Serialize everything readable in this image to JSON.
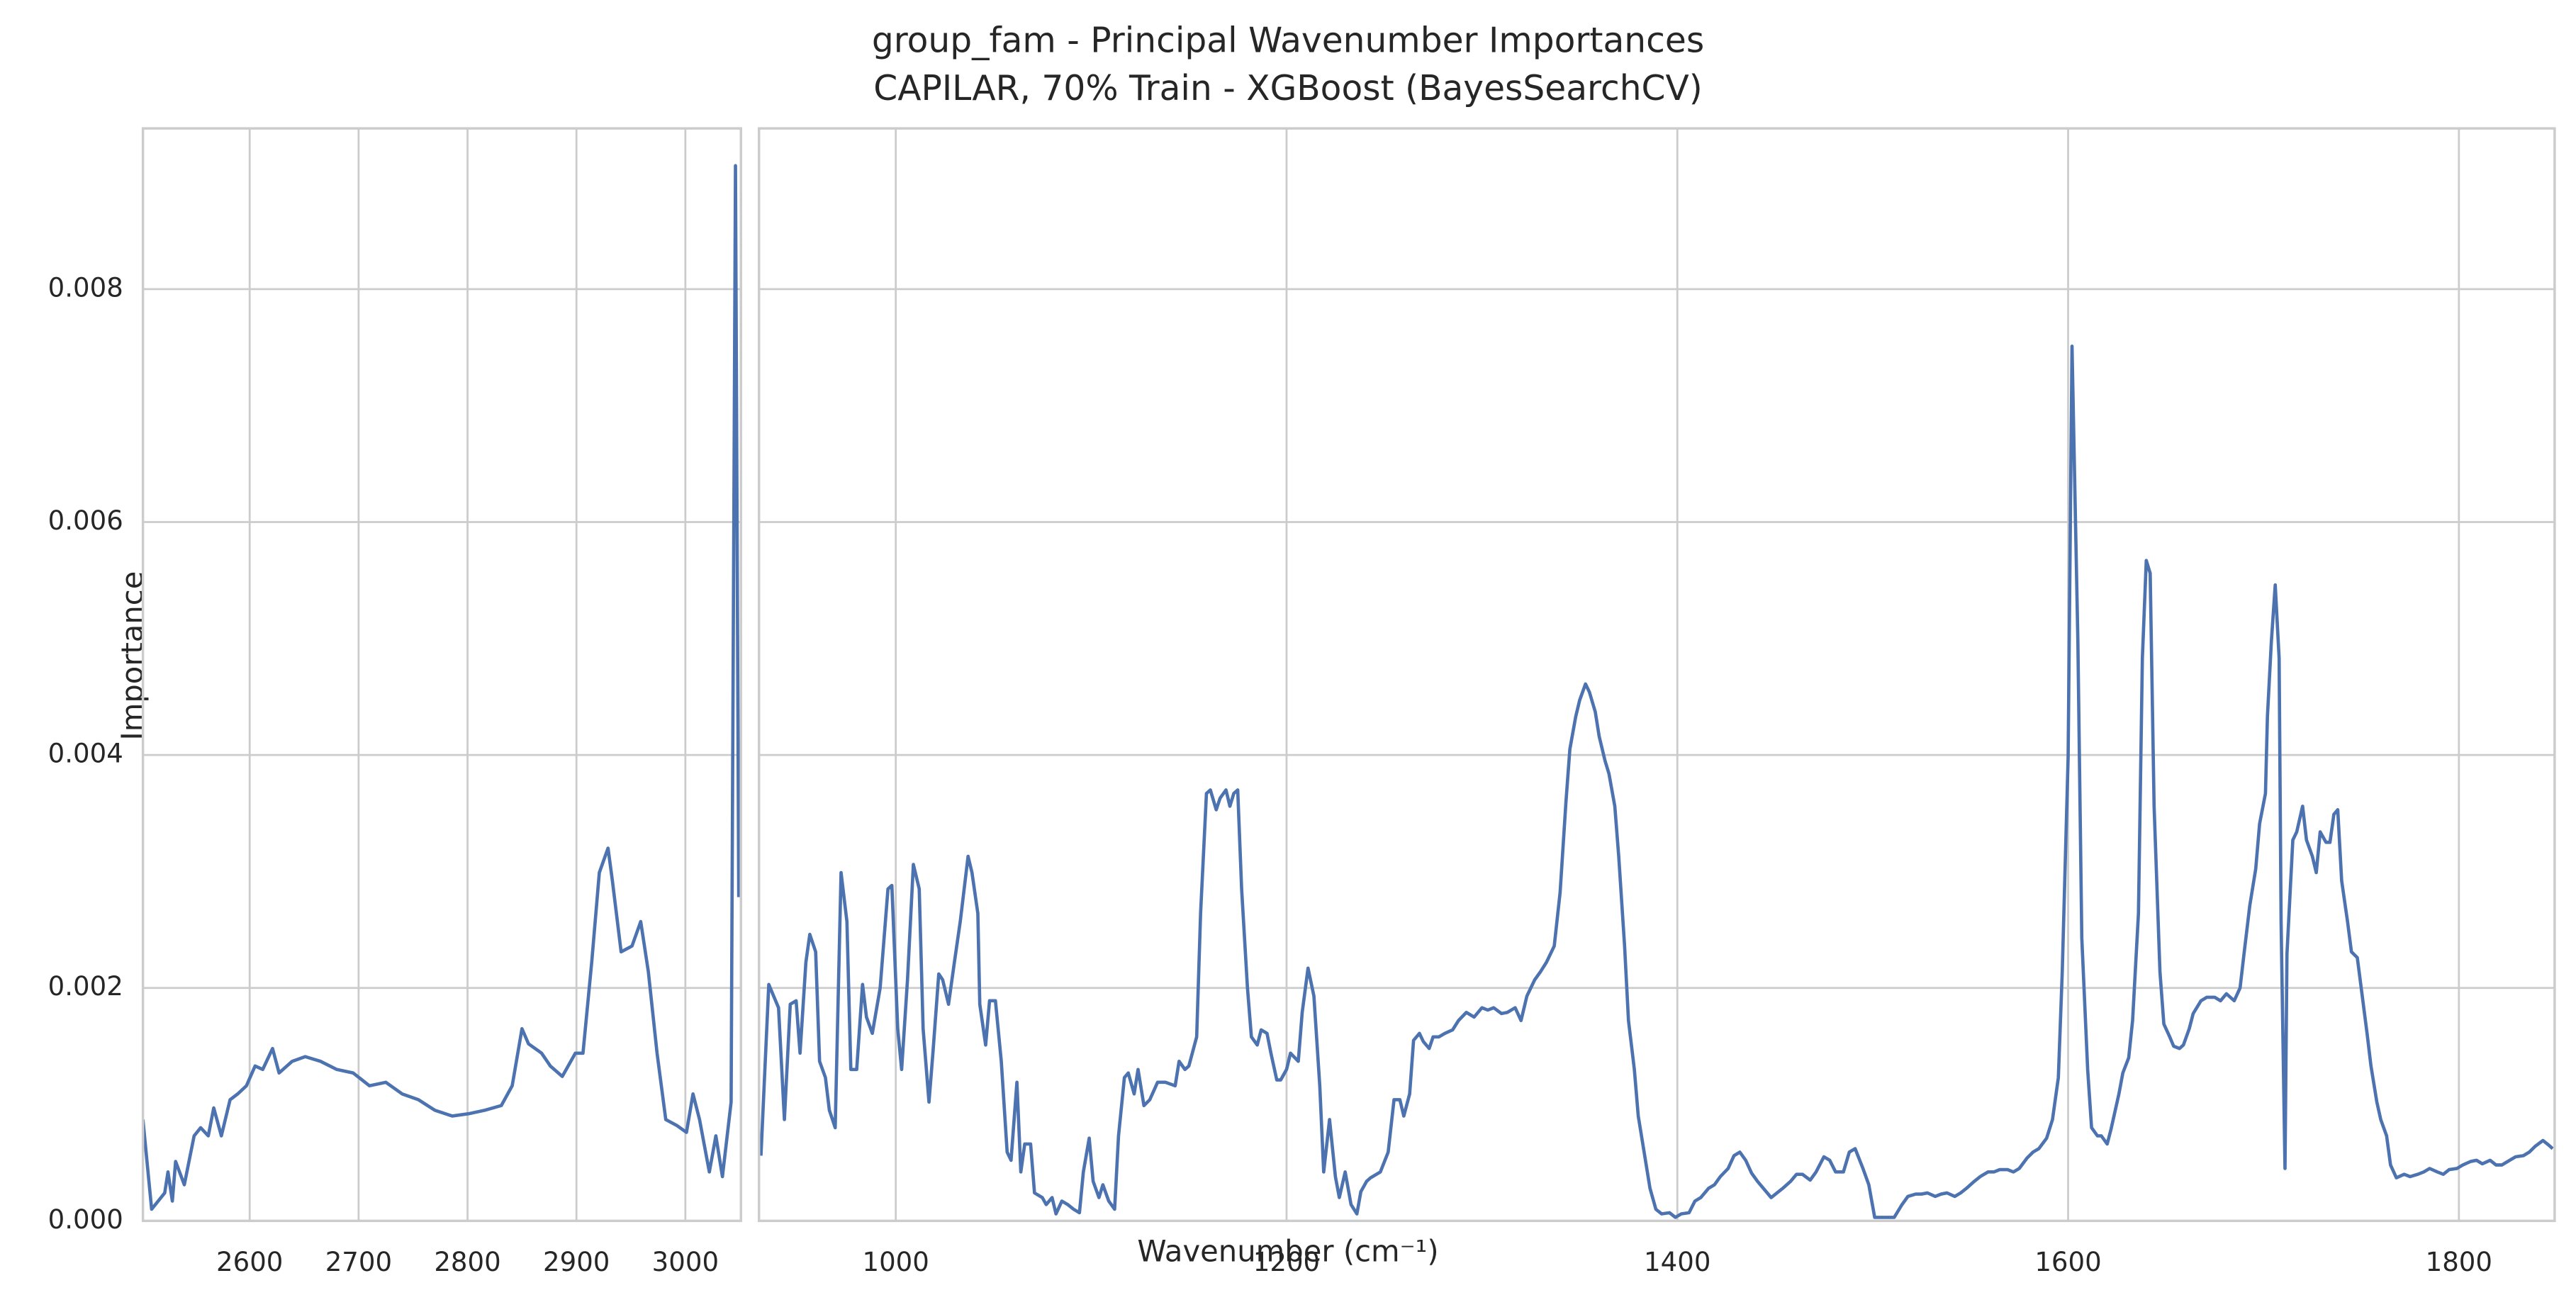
{
  "chart_data": {
    "type": "line",
    "title": "group_fam - Principal Wavenumber Importances",
    "subtitle": "CAPILAR, 70% Train - XGBoost (BayesSearchCV)",
    "x_label": "Wavenumber (cm⁻¹)",
    "y_label": "Importance",
    "color": "#4c72b0",
    "grid": true,
    "ylim": [
      0,
      0.00938
    ],
    "yticks": [
      {
        "value": 0,
        "label": "0.000"
      },
      0.002,
      0.004,
      0.006,
      0.008
    ],
    "panels": [
      {
        "xlim": [
          2502,
          3051
        ],
        "xticks": [
          2600,
          2700,
          2800,
          2900,
          3000
        ],
        "x": [
          2502,
          2510,
          2522,
          2525,
          2529,
          2532,
          2540,
          2549,
          2555,
          2562,
          2567,
          2574,
          2582,
          2589,
          2597,
          2605,
          2612,
          2621,
          2627,
          2639,
          2651,
          2665,
          2680,
          2695,
          2710,
          2725,
          2740,
          2755,
          2770,
          2786,
          2801,
          2816,
          2831,
          2841,
          2850,
          2856,
          2868,
          2876,
          2887,
          2899,
          2906,
          2914,
          2921,
          2929,
          2933,
          2941,
          2951,
          2959,
          2966,
          2974,
          2982,
          2992,
          3001,
          3007,
          3013,
          3022,
          3028,
          3034,
          3042,
          3046,
          3049
        ],
        "values": [
          0.00087,
          0.0001,
          0.00024,
          0.00042,
          0.00017,
          0.00051,
          0.00031,
          0.00073,
          0.0008,
          0.00073,
          0.00097,
          0.00073,
          0.00104,
          0.00109,
          0.00116,
          0.00133,
          0.0013,
          0.00148,
          0.00127,
          0.00137,
          0.00141,
          0.00137,
          0.0013,
          0.00127,
          0.00116,
          0.00119,
          0.00109,
          0.00104,
          0.00095,
          0.0009,
          0.00092,
          0.00095,
          0.00099,
          0.00116,
          0.00165,
          0.00152,
          0.00144,
          0.00133,
          0.00124,
          0.00144,
          0.00144,
          0.00222,
          0.00299,
          0.0032,
          0.00292,
          0.00231,
          0.00236,
          0.00257,
          0.00214,
          0.00144,
          0.00087,
          0.00082,
          0.00076,
          0.00109,
          0.00087,
          0.00042,
          0.00073,
          0.00038,
          0.00102,
          0.00906,
          0.00278
        ]
      },
      {
        "xlim": [
          930,
          1849
        ],
        "xticks": [
          1000,
          1200,
          1400,
          1600,
          1800
        ],
        "x": [
          931,
          935,
          940,
          943,
          946,
          949,
          951,
          954,
          956,
          959,
          961,
          964,
          966,
          969,
          972,
          975,
          977,
          980,
          983,
          985,
          988,
          992,
          996,
          998,
          1001,
          1003,
          1006,
          1009,
          1012,
          1014,
          1017,
          1019,
          1022,
          1024,
          1027,
          1030,
          1033,
          1037,
          1039,
          1042,
          1043,
          1046,
          1048,
          1051,
          1054,
          1057,
          1059,
          1062,
          1064,
          1066,
          1069,
          1071,
          1075,
          1077,
          1080,
          1082,
          1085,
          1088,
          1091,
          1094,
          1096,
          1099,
          1101,
          1104,
          1106,
          1109,
          1112,
          1114,
          1117,
          1119,
          1122,
          1124,
          1127,
          1130,
          1134,
          1138,
          1143,
          1145,
          1148,
          1150,
          1154,
          1156,
          1159,
          1161,
          1164,
          1166,
          1169,
          1171,
          1173,
          1175,
          1177,
          1180,
          1182,
          1185,
          1187,
          1190,
          1192,
          1195,
          1197,
          1200,
          1202,
          1206,
          1208,
          1211,
          1214,
          1217,
          1219,
          1222,
          1225,
          1227,
          1230,
          1233,
          1236,
          1238,
          1241,
          1243,
          1248,
          1252,
          1255,
          1258,
          1260,
          1263,
          1265,
          1268,
          1270,
          1273,
          1275,
          1278,
          1281,
          1285,
          1288,
          1292,
          1296,
          1300,
          1303,
          1306,
          1310,
          1313,
          1317,
          1320,
          1323,
          1327,
          1330,
          1333,
          1337,
          1340,
          1343,
          1345,
          1348,
          1350,
          1353,
          1355,
          1358,
          1360,
          1363,
          1365,
          1368,
          1370,
          1373,
          1375,
          1378,
          1380,
          1383,
          1386,
          1389,
          1392,
          1396,
          1399,
          1402,
          1406,
          1409,
          1412,
          1416,
          1419,
          1422,
          1426,
          1429,
          1432,
          1435,
          1438,
          1441,
          1444,
          1448,
          1451,
          1454,
          1458,
          1461,
          1464,
          1468,
          1471,
          1475,
          1478,
          1481,
          1485,
          1488,
          1491,
          1495,
          1498,
          1501,
          1505,
          1508,
          1511,
          1515,
          1518,
          1522,
          1525,
          1528,
          1532,
          1535,
          1538,
          1542,
          1545,
          1548,
          1552,
          1555,
          1559,
          1562,
          1565,
          1569,
          1572,
          1575,
          1579,
          1582,
          1585,
          1589,
          1592,
          1595,
          1597,
          1600,
          1602,
          1605,
          1607,
          1610,
          1612,
          1615,
          1617,
          1620,
          1622,
          1626,
          1628,
          1631,
          1633,
          1636,
          1638,
          1640,
          1642,
          1644,
          1647,
          1649,
          1652,
          1654,
          1657,
          1659,
          1662,
          1664,
          1668,
          1671,
          1675,
          1678,
          1681,
          1685,
          1688,
          1690,
          1693,
          1696,
          1698,
          1701,
          1702,
          1704,
          1706,
          1708,
          1709,
          1711,
          1712,
          1715,
          1717,
          1720,
          1722,
          1725,
          1727,
          1729,
          1732,
          1734,
          1736,
          1738,
          1740,
          1743,
          1745,
          1748,
          1750,
          1753,
          1755,
          1758,
          1760,
          1763,
          1765,
          1768,
          1772,
          1775,
          1779,
          1782,
          1785,
          1789,
          1792,
          1795,
          1799,
          1802,
          1806,
          1809,
          1812,
          1816,
          1819,
          1822,
          1826,
          1829,
          1833,
          1836,
          1839,
          1843,
          1846,
          1848
        ],
        "values": [
          0.00056,
          0.00203,
          0.00183,
          0.00087,
          0.00186,
          0.00189,
          0.00144,
          0.00222,
          0.00246,
          0.00231,
          0.00137,
          0.00123,
          0.00095,
          0.0008,
          0.00299,
          0.00257,
          0.0013,
          0.0013,
          0.00203,
          0.00175,
          0.00161,
          0.002,
          0.00285,
          0.00288,
          0.00165,
          0.0013,
          0.00207,
          0.00306,
          0.00285,
          0.00165,
          0.00102,
          0.00144,
          0.00212,
          0.00207,
          0.00186,
          0.00222,
          0.00257,
          0.00313,
          0.00299,
          0.00264,
          0.00186,
          0.00151,
          0.00189,
          0.00189,
          0.00137,
          0.00059,
          0.00052,
          0.00119,
          0.00042,
          0.00066,
          0.00066,
          0.00024,
          0.0002,
          0.00014,
          0.0002,
          6e-05,
          0.00017,
          0.00014,
          0.0001,
          7e-05,
          0.00042,
          0.00071,
          0.00034,
          0.0002,
          0.00031,
          0.00017,
          0.0001,
          0.00073,
          0.00123,
          0.00127,
          0.00109,
          0.0013,
          0.00099,
          0.00104,
          0.00119,
          0.00119,
          0.00116,
          0.00137,
          0.0013,
          0.00133,
          0.00158,
          0.00264,
          0.00367,
          0.0037,
          0.00353,
          0.00363,
          0.0037,
          0.00356,
          0.00367,
          0.0037,
          0.00285,
          0.002,
          0.00158,
          0.00151,
          0.00164,
          0.00161,
          0.00144,
          0.00121,
          0.00121,
          0.0013,
          0.00144,
          0.00137,
          0.00179,
          0.00217,
          0.00193,
          0.00116,
          0.00042,
          0.00087,
          0.00038,
          0.0002,
          0.00042,
          0.00014,
          6e-05,
          0.00025,
          0.00034,
          0.00037,
          0.00042,
          0.00059,
          0.00104,
          0.00104,
          0.0009,
          0.00109,
          0.00155,
          0.00161,
          0.00154,
          0.00148,
          0.00158,
          0.00158,
          0.00161,
          0.00164,
          0.00172,
          0.00179,
          0.00175,
          0.00183,
          0.00181,
          0.00183,
          0.00178,
          0.00179,
          0.00183,
          0.00172,
          0.00193,
          0.00207,
          0.00214,
          0.00222,
          0.00236,
          0.00282,
          0.0036,
          0.00405,
          0.00433,
          0.00447,
          0.00461,
          0.00454,
          0.00437,
          0.00416,
          0.00395,
          0.00384,
          0.00356,
          0.00313,
          0.00236,
          0.00172,
          0.0013,
          0.0009,
          0.00059,
          0.00028,
          0.0001,
          6e-05,
          7e-05,
          3e-05,
          6e-05,
          7e-05,
          0.00017,
          0.0002,
          0.00028,
          0.00031,
          0.00038,
          0.00045,
          0.00056,
          0.00059,
          0.00052,
          0.00041,
          0.00034,
          0.00028,
          0.0002,
          0.00024,
          0.00028,
          0.00034,
          0.0004,
          0.0004,
          0.00035,
          0.00042,
          0.00055,
          0.00052,
          0.00042,
          0.00042,
          0.00059,
          0.00062,
          0.00045,
          0.00031,
          3e-05,
          3e-05,
          3e-05,
          3e-05,
          0.00014,
          0.00021,
          0.00023,
          0.00023,
          0.00024,
          0.00021,
          0.00023,
          0.00024,
          0.00021,
          0.00024,
          0.00028,
          0.00034,
          0.00038,
          0.00042,
          0.00042,
          0.00044,
          0.00044,
          0.00042,
          0.00045,
          0.00054,
          0.00059,
          0.00062,
          0.00071,
          0.00087,
          0.00123,
          0.00214,
          0.00398,
          0.00751,
          0.00497,
          0.00243,
          0.0013,
          0.0008,
          0.00073,
          0.00073,
          0.00066,
          0.00079,
          0.00109,
          0.00127,
          0.0014,
          0.00172,
          0.00264,
          0.00483,
          0.00567,
          0.00556,
          0.00356,
          0.00214,
          0.00169,
          0.00158,
          0.0015,
          0.00148,
          0.00151,
          0.00165,
          0.00178,
          0.00189,
          0.00192,
          0.00192,
          0.00189,
          0.00195,
          0.00189,
          0.002,
          0.00229,
          0.00271,
          0.00302,
          0.00341,
          0.00367,
          0.00433,
          0.00497,
          0.00546,
          0.00483,
          0.00257,
          0.00045,
          0.00229,
          0.00327,
          0.00334,
          0.00356,
          0.00327,
          0.00313,
          0.00299,
          0.00334,
          0.00325,
          0.00325,
          0.00349,
          0.00353,
          0.00292,
          0.00257,
          0.00231,
          0.00226,
          0.002,
          0.00161,
          0.00133,
          0.00102,
          0.00087,
          0.00073,
          0.00048,
          0.00037,
          0.0004,
          0.00038,
          0.0004,
          0.00042,
          0.00045,
          0.00042,
          0.0004,
          0.00044,
          0.00045,
          0.00048,
          0.00051,
          0.00052,
          0.00049,
          0.00052,
          0.00048,
          0.00048,
          0.00052,
          0.00055,
          0.00056,
          0.00059,
          0.00064,
          0.00069,
          0.00065,
          0.00062
        ]
      }
    ]
  }
}
